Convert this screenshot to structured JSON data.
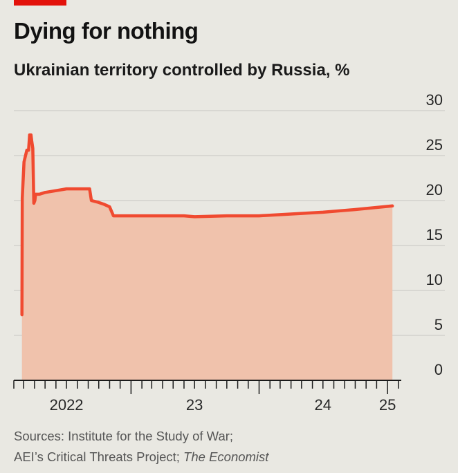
{
  "header": {
    "title": "Dying for nothing",
    "subtitle": "Ukrainian territory controlled by Russia, %"
  },
  "colors": {
    "brand_red": "#e3120b",
    "line": "#f04a30",
    "fill": "#f0c2ac",
    "grid": "#c7c6c1"
  },
  "chart_data": {
    "type": "area",
    "title": "Dying for nothing",
    "subtitle": "Ukrainian territory controlled by Russia, %",
    "xlabel": "",
    "ylabel": "",
    "ylim": [
      0,
      30
    ],
    "yticks": [
      "0",
      "5",
      "10",
      "15",
      "20",
      "25",
      "30"
    ],
    "xticks": [
      "2022",
      "23",
      "24",
      "25"
    ],
    "grid": true,
    "legend": "none",
    "series": [
      {
        "x": [
          "2022-02-24",
          "2022-02-25",
          "2022-03-02",
          "2022-03-10",
          "2022-03-15",
          "2022-03-18",
          "2022-03-22",
          "2022-03-24",
          "2022-03-27",
          "2022-03-30",
          "2022-04-02",
          "2022-04-04",
          "2022-04-15",
          "2022-05-01",
          "2022-06-01",
          "2022-07-01",
          "2022-08-01",
          "2022-09-05",
          "2022-09-10",
          "2022-09-30",
          "2022-10-15",
          "2022-11-01",
          "2022-11-12",
          "2022-11-20",
          "2023-01-01",
          "2023-04-01",
          "2023-06-01",
          "2023-07-01",
          "2023-10-01",
          "2024-01-01",
          "2024-04-01",
          "2024-07-01",
          "2024-10-01",
          "2025-01-15"
        ],
        "values": [
          7.3,
          20.3,
          24.3,
          25.6,
          25.6,
          27.3,
          27.3,
          26.6,
          25.8,
          19.7,
          20.0,
          20.7,
          20.7,
          20.9,
          21.1,
          21.3,
          21.3,
          21.3,
          20.0,
          19.8,
          19.6,
          19.3,
          18.3,
          18.3,
          18.3,
          18.3,
          18.3,
          18.2,
          18.3,
          18.3,
          18.5,
          18.7,
          19.0,
          19.4
        ]
      }
    ]
  },
  "sources": {
    "line1": "Sources: Institute for the Study of War;",
    "line2_prefix": "AEI’s Critical Threats Project;",
    "line2_italic": "The Economist"
  }
}
